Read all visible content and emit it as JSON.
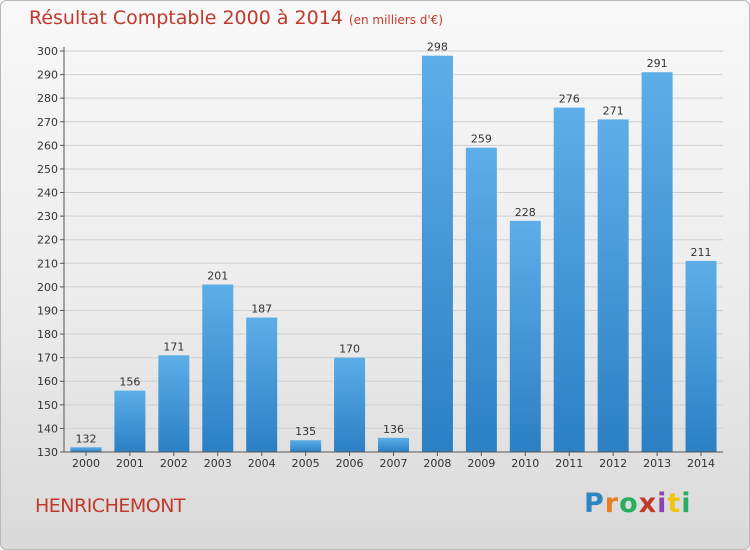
{
  "title": "Résultat Comptable 2000 à 2014",
  "subtitle": "(en milliers d'€)",
  "commune": "HENRICHEMONT",
  "logo": {
    "letters": [
      "P",
      "r",
      "o",
      "x",
      "i",
      "t",
      "i"
    ],
    "colors": [
      "#2e86c1",
      "#e67e22",
      "#27ae60",
      "#c0392b",
      "#8e44ad",
      "#f1c40f",
      "#27ae60"
    ]
  },
  "colors": {
    "title": "#c0392b",
    "bar": "#3b94d6",
    "bar_light": "#5daee8",
    "grid": "#cfcfcf"
  },
  "chart_data": {
    "type": "bar",
    "categories": [
      "2000",
      "2001",
      "2002",
      "2003",
      "2004",
      "2005",
      "2006",
      "2007",
      "2008",
      "2009",
      "2010",
      "2011",
      "2012",
      "2013",
      "2014"
    ],
    "values": [
      132,
      156,
      171,
      201,
      187,
      135,
      170,
      136,
      298,
      259,
      228,
      276,
      271,
      291,
      211
    ],
    "ylim": [
      130,
      300
    ],
    "yticks": [
      130,
      140,
      150,
      160,
      170,
      180,
      190,
      200,
      210,
      220,
      230,
      240,
      250,
      260,
      270,
      280,
      290,
      300
    ],
    "grid": true,
    "xlabel": "",
    "ylabel": ""
  }
}
